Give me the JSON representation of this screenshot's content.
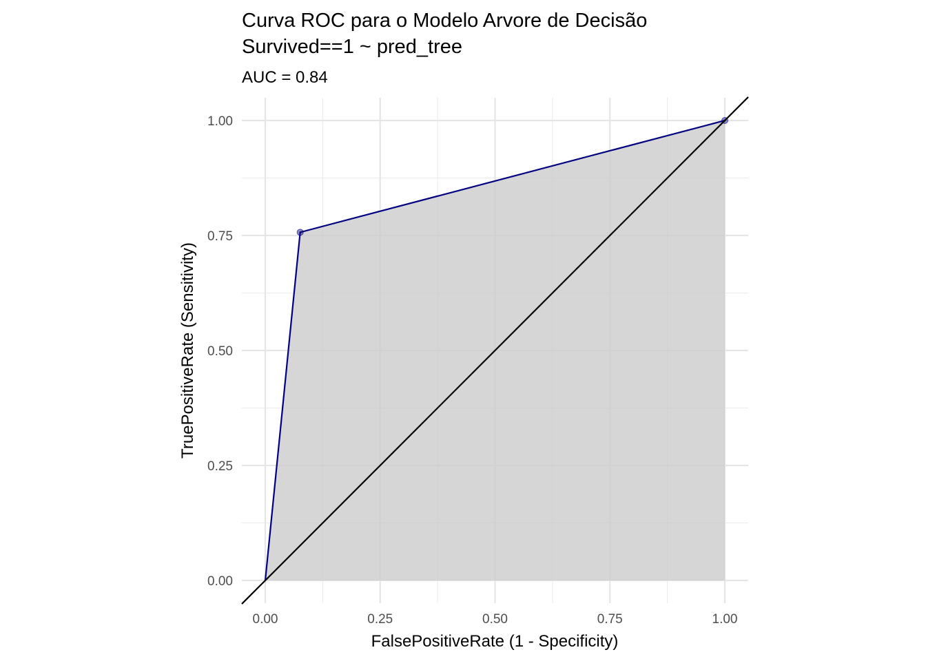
{
  "chart_data": {
    "type": "area",
    "title": "Curva ROC para o Modelo Arvore de Decisão",
    "title_line2": "Survived==1 ~ pred_tree",
    "subtitle": "AUC = 0.84",
    "xlabel": "FalsePositiveRate (1 - Specificity)",
    "ylabel": "TruePositiveRate (Sensitivity)",
    "xlim": [
      0,
      1
    ],
    "ylim": [
      0,
      1
    ],
    "x_ticks": [
      "0.00",
      "0.25",
      "0.50",
      "0.75",
      "1.00"
    ],
    "y_ticks": [
      "0.00",
      "0.25",
      "0.50",
      "0.75",
      "1.00"
    ],
    "grid": true,
    "series": [
      {
        "x": [
          0,
          0.076,
          1.0
        ],
        "y": [
          0,
          0.757,
          1.0
        ],
        "line_color": "#000080",
        "fill_color": "#cccccc",
        "marker_points": [
          [
            0.076,
            0.757
          ],
          [
            1.0,
            1.0
          ]
        ]
      }
    ],
    "reference_line": {
      "x": [
        0,
        1
      ],
      "y": [
        0,
        1
      ],
      "color": "#000000"
    },
    "auc": 0.84
  }
}
